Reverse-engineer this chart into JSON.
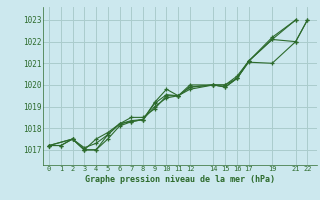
{
  "title": "Graphe pression niveau de la mer (hPa)",
  "bg_color": "#cce8ee",
  "grid_color": "#aacccc",
  "line_color": "#2d6b2d",
  "marker_color": "#2d6b2d",
  "xticks": [
    0,
    1,
    2,
    3,
    4,
    5,
    6,
    7,
    8,
    9,
    10,
    11,
    12,
    14,
    15,
    16,
    17,
    19,
    21,
    22
  ],
  "yticks": [
    1017,
    1018,
    1019,
    1020,
    1021,
    1022,
    1023
  ],
  "ylim": [
    1016.3,
    1023.6
  ],
  "xlim": [
    -0.5,
    22.8
  ],
  "series": [
    {
      "x": [
        0,
        1,
        2,
        3,
        4,
        5,
        6,
        7,
        8,
        9,
        10,
        11,
        12,
        14,
        15,
        16,
        17,
        19,
        21
      ],
      "y": [
        1017.2,
        1017.2,
        1017.5,
        1017.0,
        1017.0,
        1017.5,
        1018.1,
        1018.3,
        1018.4,
        1019.0,
        1019.4,
        1019.5,
        1019.8,
        1020.0,
        1020.0,
        1020.4,
        1021.1,
        1022.2,
        1023.0
      ]
    },
    {
      "x": [
        0,
        1,
        2,
        3,
        4,
        5,
        6,
        7,
        8,
        9,
        10,
        11,
        12,
        14,
        15,
        16,
        17,
        19,
        21
      ],
      "y": [
        1017.2,
        1017.2,
        1017.5,
        1017.1,
        1017.3,
        1017.7,
        1018.2,
        1018.5,
        1018.5,
        1018.9,
        1019.5,
        1019.5,
        1019.9,
        1020.0,
        1019.9,
        1020.3,
        1021.1,
        1022.1,
        1023.0
      ]
    },
    {
      "x": [
        0,
        2,
        3,
        4,
        5,
        6,
        7,
        8,
        9,
        10,
        11,
        12,
        14,
        15,
        16,
        17,
        19,
        21,
        22
      ],
      "y": [
        1017.2,
        1017.5,
        1017.0,
        1017.5,
        1017.8,
        1018.2,
        1018.3,
        1018.4,
        1019.2,
        1019.8,
        1019.5,
        1019.9,
        1020.0,
        1020.0,
        1020.3,
        1021.1,
        1022.1,
        1022.0,
        1023.0
      ]
    },
    {
      "x": [
        0,
        2,
        3,
        4,
        5,
        6,
        7,
        8,
        9,
        10,
        11,
        12,
        14,
        15,
        16,
        17,
        19,
        21,
        22
      ],
      "y": [
        1017.2,
        1017.5,
        1017.0,
        1017.0,
        1017.7,
        1018.2,
        1018.35,
        1018.4,
        1019.15,
        1019.55,
        1019.5,
        1020.0,
        1020.0,
        1019.9,
        1020.3,
        1021.05,
        1021.0,
        1022.0,
        1023.0
      ]
    }
  ],
  "ylabel_fontsize": 5.5,
  "xlabel_fontsize": 6.0,
  "tick_fontsize": 5.0
}
